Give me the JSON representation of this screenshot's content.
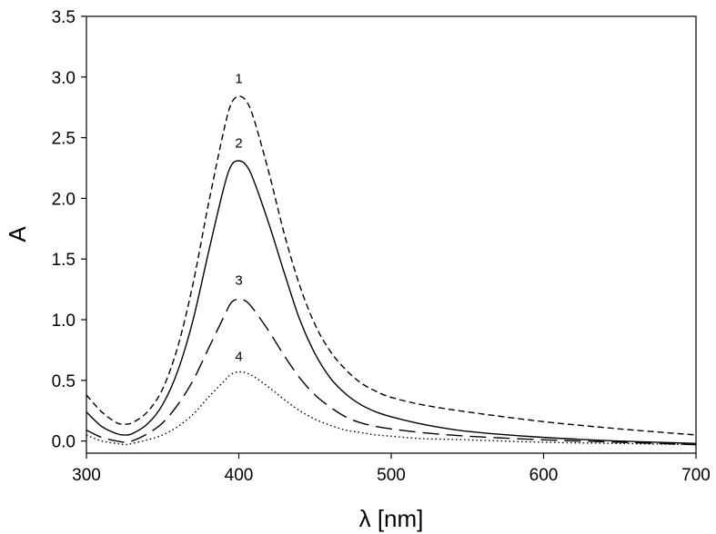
{
  "chart_data": {
    "type": "line",
    "title": "",
    "xlabel": "λ [nm]",
    "ylabel": "A",
    "xlim": [
      300,
      700
    ],
    "ylim": [
      -0.1,
      3.5
    ],
    "x_ticks": [
      300,
      400,
      500,
      600,
      700
    ],
    "x_tick_labels": [
      "300",
      "400",
      "500",
      "600",
      "700"
    ],
    "y_ticks": [
      0.0,
      0.5,
      1.0,
      1.5,
      2.0,
      2.5,
      3.0,
      3.5
    ],
    "y_tick_labels": [
      "0.0",
      "0.5",
      "1.0",
      "1.5",
      "2.0",
      "2.5",
      "3.0",
      "3.5"
    ],
    "grid": false,
    "legend": "none",
    "series": [
      {
        "label": "1",
        "dash": "short-dash",
        "label_pos": [
          400,
          2.95
        ],
        "points": [
          [
            300,
            0.38
          ],
          [
            310,
            0.24
          ],
          [
            320,
            0.15
          ],
          [
            325,
            0.14
          ],
          [
            330,
            0.15
          ],
          [
            340,
            0.24
          ],
          [
            350,
            0.43
          ],
          [
            360,
            0.78
          ],
          [
            370,
            1.3
          ],
          [
            380,
            1.95
          ],
          [
            390,
            2.55
          ],
          [
            395,
            2.78
          ],
          [
            400,
            2.84
          ],
          [
            405,
            2.8
          ],
          [
            410,
            2.65
          ],
          [
            420,
            2.2
          ],
          [
            430,
            1.7
          ],
          [
            440,
            1.28
          ],
          [
            450,
            0.96
          ],
          [
            460,
            0.74
          ],
          [
            470,
            0.59
          ],
          [
            480,
            0.48
          ],
          [
            490,
            0.41
          ],
          [
            500,
            0.36
          ],
          [
            520,
            0.3
          ],
          [
            550,
            0.24
          ],
          [
            600,
            0.16
          ],
          [
            650,
            0.1
          ],
          [
            700,
            0.05
          ]
        ]
      },
      {
        "label": "2",
        "dash": "solid",
        "label_pos": [
          400,
          2.42
        ],
        "points": [
          [
            300,
            0.24
          ],
          [
            310,
            0.12
          ],
          [
            320,
            0.06
          ],
          [
            325,
            0.05
          ],
          [
            330,
            0.06
          ],
          [
            340,
            0.14
          ],
          [
            350,
            0.3
          ],
          [
            360,
            0.58
          ],
          [
            370,
            1.0
          ],
          [
            380,
            1.55
          ],
          [
            390,
            2.08
          ],
          [
            395,
            2.27
          ],
          [
            400,
            2.31
          ],
          [
            405,
            2.27
          ],
          [
            410,
            2.14
          ],
          [
            420,
            1.78
          ],
          [
            430,
            1.38
          ],
          [
            440,
            1.0
          ],
          [
            450,
            0.72
          ],
          [
            460,
            0.52
          ],
          [
            470,
            0.39
          ],
          [
            480,
            0.3
          ],
          [
            490,
            0.24
          ],
          [
            500,
            0.2
          ],
          [
            520,
            0.14
          ],
          [
            550,
            0.08
          ],
          [
            600,
            0.03
          ],
          [
            650,
            0.0
          ],
          [
            700,
            -0.02
          ]
        ]
      },
      {
        "label": "3",
        "dash": "long-dash",
        "label_pos": [
          400,
          1.29
        ],
        "points": [
          [
            300,
            0.09
          ],
          [
            310,
            0.03
          ],
          [
            320,
            0.0
          ],
          [
            325,
            -0.01
          ],
          [
            330,
            0.0
          ],
          [
            340,
            0.06
          ],
          [
            350,
            0.15
          ],
          [
            360,
            0.3
          ],
          [
            370,
            0.5
          ],
          [
            380,
            0.76
          ],
          [
            390,
            1.02
          ],
          [
            395,
            1.14
          ],
          [
            400,
            1.17
          ],
          [
            405,
            1.15
          ],
          [
            410,
            1.08
          ],
          [
            420,
            0.9
          ],
          [
            430,
            0.7
          ],
          [
            440,
            0.52
          ],
          [
            450,
            0.38
          ],
          [
            460,
            0.28
          ],
          [
            470,
            0.2
          ],
          [
            480,
            0.15
          ],
          [
            490,
            0.12
          ],
          [
            500,
            0.1
          ],
          [
            520,
            0.07
          ],
          [
            550,
            0.04
          ],
          [
            600,
            0.01
          ],
          [
            650,
            -0.01
          ],
          [
            700,
            -0.03
          ]
        ]
      },
      {
        "label": "4",
        "dash": "dotted",
        "label_pos": [
          400,
          0.66
        ],
        "points": [
          [
            300,
            0.05
          ],
          [
            310,
            0.0
          ],
          [
            320,
            -0.02
          ],
          [
            325,
            -0.03
          ],
          [
            330,
            -0.02
          ],
          [
            340,
            0.01
          ],
          [
            350,
            0.05
          ],
          [
            360,
            0.12
          ],
          [
            370,
            0.22
          ],
          [
            380,
            0.36
          ],
          [
            390,
            0.49
          ],
          [
            395,
            0.55
          ],
          [
            400,
            0.57
          ],
          [
            405,
            0.56
          ],
          [
            410,
            0.53
          ],
          [
            420,
            0.44
          ],
          [
            430,
            0.34
          ],
          [
            440,
            0.25
          ],
          [
            450,
            0.18
          ],
          [
            460,
            0.13
          ],
          [
            470,
            0.09
          ],
          [
            480,
            0.07
          ],
          [
            490,
            0.05
          ],
          [
            500,
            0.04
          ],
          [
            520,
            0.02
          ],
          [
            550,
            0.01
          ],
          [
            600,
            -0.01
          ],
          [
            650,
            -0.02
          ],
          [
            700,
            -0.03
          ]
        ]
      }
    ]
  }
}
